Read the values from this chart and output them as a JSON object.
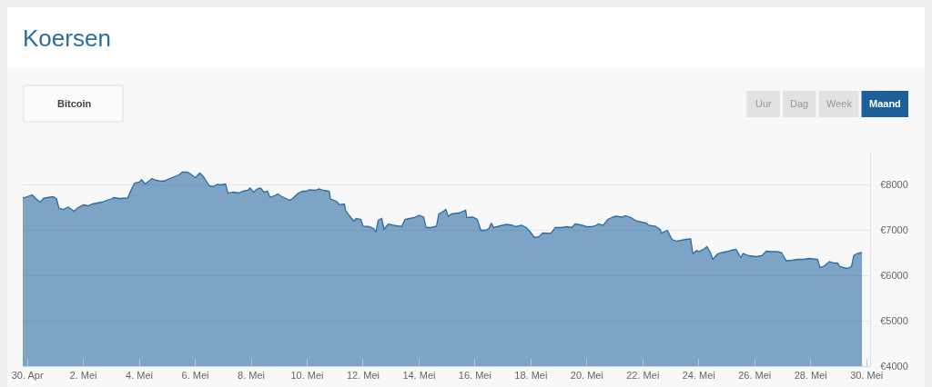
{
  "chart_data": {
    "type": "area",
    "title": "Koersen",
    "annotations": [
      "Bitcoin",
      "Uur",
      "Dag",
      "Week",
      "Maand"
    ],
    "color": "#2b6ca3",
    "grid": "y",
    "marker": "none",
    "xlim": [
      "--04-29T20:00",
      "--05-30T03:00"
    ],
    "xticks": [
      {
        "value": "--04-30",
        "label": "30. Apr"
      },
      {
        "value": "--05-02",
        "label": "2. Mei"
      },
      {
        "value": "--05-04",
        "label": "4. Mei"
      },
      {
        "value": "--05-06",
        "label": "6. Mei"
      },
      {
        "value": "--05-08",
        "label": "8. Mei"
      },
      {
        "value": "--05-10",
        "label": "10. Mei"
      },
      {
        "value": "--05-12",
        "label": "12. Mei"
      },
      {
        "value": "--05-14",
        "label": "14. Mei"
      },
      {
        "value": "--05-16",
        "label": "16. Mei"
      },
      {
        "value": "--05-18",
        "label": "18. Mei"
      },
      {
        "value": "--05-20",
        "label": "20. Mei"
      },
      {
        "value": "--05-22",
        "label": "22. Mei"
      },
      {
        "value": "--05-24",
        "label": "24. Mei"
      },
      {
        "value": "--05-26",
        "label": "26. Mei"
      },
      {
        "value": "--05-28",
        "label": "28. Mei"
      },
      {
        "value": "--05-30",
        "label": "30. Mei"
      }
    ],
    "ylim": [
      4000,
      8700
    ],
    "yticks": [
      {
        "value": 4000,
        "label": "€4000"
      },
      {
        "value": 5000,
        "label": "€5000"
      },
      {
        "value": 6000,
        "label": "€6000"
      },
      {
        "value": 7000,
        "label": "€7000"
      },
      {
        "value": 8000,
        "label": "€8000"
      }
    ],
    "x": [
      "--04-29T20:00",
      "--04-30T00:00",
      "--04-30T04:00",
      "--04-30T08:00",
      "--04-30T11:00",
      "--04-30T14:00",
      "--04-30T22:00",
      "--05-01T01:00",
      "--05-01T03:00",
      "--05-01T07:00",
      "--05-01T11:00",
      "--05-01T16:00",
      "--05-01T19:00",
      "--05-02T00:00",
      "--05-02T04:00",
      "--05-02T08:00",
      "--05-02T12:00",
      "--05-02T16:00",
      "--05-02T20:00",
      "--05-03T00:00",
      "--05-03T02:00",
      "--05-03T07:00",
      "--05-03T14:00",
      "--05-03T17:00",
      "--05-03T20:00",
      "--05-04T00:00",
      "--05-04T02:00",
      "--05-04T05:00",
      "--05-04T08:00",
      "--05-04T11:00",
      "--05-04T13:00",
      "--05-04T18:00",
      "--05-04T22:00",
      "--05-05T02:00",
      "--05-05T06:00",
      "--05-05T10:00",
      "--05-05T13:00",
      "--05-05T17:00",
      "--05-05T20:00",
      "--05-06T00:00",
      "--05-06T04:00",
      "--05-06T07:00",
      "--05-06T12:00",
      "--05-06T15:00",
      "--05-06T19:00",
      "--05-06T22:00",
      "--05-07T02:00",
      "--05-07T04:00",
      "--05-07T09:00",
      "--05-07T13:00",
      "--05-07T17:00",
      "--05-07T21:00",
      "--05-07T23:00",
      "--05-08T02:00",
      "--05-08T05:00",
      "--05-08T08:00",
      "--05-08T11:00",
      "--05-08T14:00",
      "--05-08T16:00",
      "--05-08T20:00",
      "--05-08T23:00",
      "--05-09T01:00",
      "--05-09T05:00",
      "--05-09T09:00",
      "--05-09T12:00",
      "--05-09T16:00",
      "--05-09T20:00",
      "--05-09T23:00",
      "--05-10T02:00",
      "--05-10T07:00",
      "--05-10T10:00",
      "--05-10T14:00",
      "--05-10T19:00",
      "--05-10T20:00",
      "--05-11T01:00",
      "--05-11T04:00",
      "--05-11T08:00",
      "--05-11T09:00",
      "--05-11T12:00",
      "--05-11T16:00",
      "--05-11T18:00",
      "--05-11T22:00",
      "--05-12T00:00",
      "--05-12T05:00",
      "--05-12T09:00",
      "--05-12T11:00",
      "--05-12T13:00",
      "--05-12T16:00",
      "--05-12T18:00",
      "--05-12T20:00",
      "--05-12T22:00",
      "--05-13T02:00",
      "--05-13T07:00",
      "--05-13T09:00",
      "--05-13T12:00",
      "--05-13T16:00",
      "--05-13T20:00",
      "--05-14T00:00",
      "--05-14T04:00",
      "--05-14T06:00",
      "--05-14T10:00",
      "--05-14T15:00",
      "--05-14T17:00",
      "--05-14T20:00",
      "--05-14T23:00",
      "--05-15T01:00",
      "--05-15T04:00",
      "--05-15T10:00",
      "--05-15T13:00",
      "--05-15T16:00",
      "--05-15T17:00",
      "--05-15T22:00",
      "--05-16T02:00",
      "--05-16T05:00",
      "--05-16T09:00",
      "--05-16T12:00",
      "--05-16T14:00",
      "--05-16T16:00",
      "--05-16T22:00",
      "--05-17T03:00",
      "--05-17T08:00",
      "--05-17T11:00",
      "--05-17T16:00",
      "--05-17T20:00",
      "--05-17T23:00",
      "--05-18T03:00",
      "--05-18T07:00",
      "--05-18T10:00",
      "--05-18T17:00",
      "--05-18T21:00",
      "--05-19T02:00",
      "--05-19T07:00",
      "--05-19T11:00",
      "--05-19T14:00",
      "--05-19T20:00",
      "--05-20T00:00",
      "--05-20T04:00",
      "--05-20T08:00",
      "--05-20T10:00",
      "--05-20T14:00",
      "--05-20T18:00",
      "--05-20T22:00",
      "--05-21T01:00",
      "--05-21T06:00",
      "--05-21T09:00",
      "--05-21T14:00",
      "--05-21T18:00",
      "--05-21T23:00",
      "--05-22T03:00",
      "--05-22T05:00",
      "--05-22T11:00",
      "--05-22T15:00",
      "--05-22T16:00",
      "--05-22T21:00",
      "--05-23T01:00",
      "--05-23T05:00",
      "--05-23T09:00",
      "--05-23T13:00",
      "--05-23T17:00",
      "--05-23T19:00",
      "--05-23T22:00",
      "--05-24T00:00",
      "--05-24T04:00",
      "--05-24T07:00",
      "--05-24T10:00",
      "--05-24T12:00",
      "--05-24T16:00",
      "--05-24T20:00",
      "--05-25T00:00",
      "--05-25T04:00",
      "--05-25T08:00",
      "--05-25T12:00",
      "--05-25T14:00",
      "--05-25T19:00",
      "--05-26T01:00",
      "--05-26T06:00",
      "--05-26T10:00",
      "--05-26T14:00",
      "--05-26T19:00",
      "--05-26T23:00",
      "--05-27T03:00",
      "--05-27T08:00",
      "--05-27T13:00",
      "--05-27T18:00",
      "--05-27T23:00",
      "--05-28T06:00",
      "--05-28T08:00",
      "--05-28T12:00",
      "--05-28T16:00",
      "--05-28T20:00",
      "--05-28T23:00",
      "--05-29T01:00",
      "--05-29T07:00",
      "--05-29T11:00",
      "--05-29T13:00",
      "--05-29T16:00",
      "--05-29T20:00"
    ],
    "values": [
      7700,
      7730,
      7770,
      7670,
      7610,
      7700,
      7730,
      7680,
      7480,
      7450,
      7500,
      7410,
      7480,
      7550,
      7530,
      7570,
      7590,
      7610,
      7650,
      7680,
      7710,
      7690,
      7700,
      7880,
      8030,
      8050,
      8100,
      8010,
      8070,
      8130,
      8100,
      8070,
      8080,
      8130,
      8170,
      8210,
      8270,
      8270,
      8230,
      8150,
      8250,
      8170,
      7970,
      7950,
      8000,
      7990,
      8010,
      7810,
      7830,
      7810,
      7850,
      7870,
      7920,
      7830,
      7900,
      7920,
      7830,
      7850,
      7720,
      7750,
      7790,
      7750,
      7700,
      7650,
      7700,
      7800,
      7850,
      7850,
      7880,
      7870,
      7900,
      7870,
      7850,
      7680,
      7630,
      7550,
      7570,
      7430,
      7320,
      7190,
      7250,
      7230,
      7080,
      7070,
      7030,
      6950,
      7210,
      7250,
      7010,
      7080,
      7130,
      7100,
      7080,
      7070,
      7230,
      7250,
      7270,
      7320,
      7280,
      7050,
      7050,
      7080,
      7350,
      7390,
      7450,
      7300,
      7350,
      7370,
      7400,
      7430,
      7270,
      7280,
      7230,
      6990,
      6990,
      7030,
      7150,
      7050,
      7090,
      7120,
      7100,
      7070,
      7100,
      7050,
      6970,
      6830,
      6850,
      6930,
      6920,
      7050,
      7050,
      7070,
      7050,
      7130,
      7100,
      7070,
      7070,
      7100,
      7130,
      7100,
      7230,
      7280,
      7300,
      7280,
      7310,
      7270,
      7200,
      7170,
      7150,
      7100,
      7080,
      7000,
      6930,
      6990,
      6790,
      6750,
      6770,
      6790,
      6800,
      6470,
      6550,
      6520,
      6570,
      6630,
      6500,
      6350,
      6470,
      6500,
      6520,
      6550,
      6570,
      6390,
      6480,
      6430,
      6410,
      6430,
      6530,
      6520,
      6520,
      6500,
      6320,
      6330,
      6350,
      6350,
      6370,
      6350,
      6170,
      6210,
      6300,
      6270,
      6270,
      6190,
      6150,
      6190,
      6430,
      6480,
      6500
    ]
  }
}
